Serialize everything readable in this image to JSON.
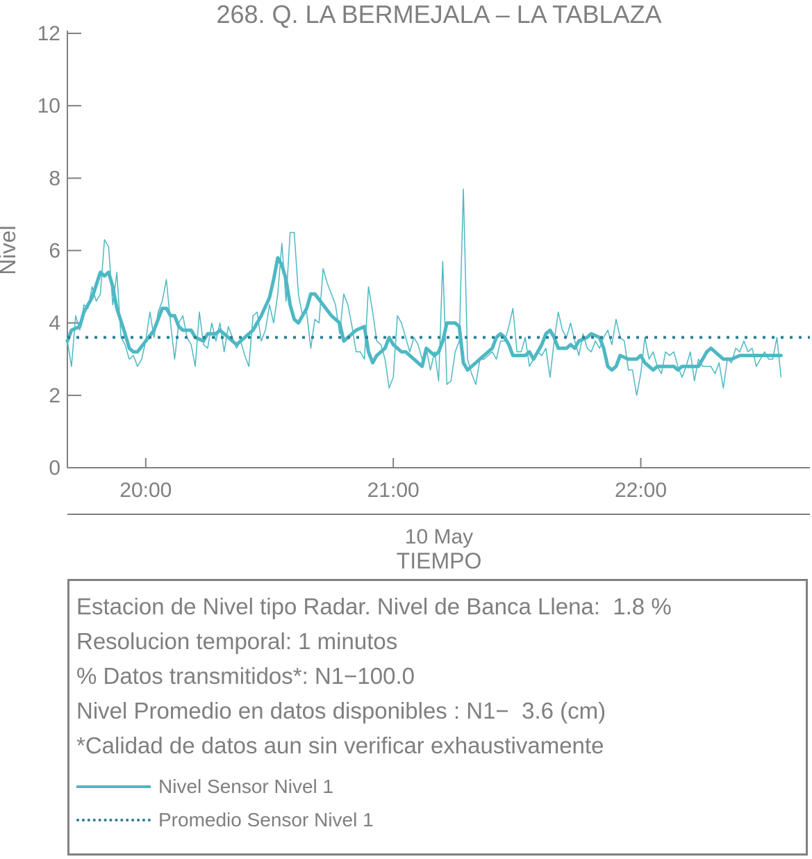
{
  "chart_data": {
    "type": "line",
    "title": "268. Q. LA BERMEJALA – LA TABLAZA",
    "ylabel": "Nivel",
    "xlabel": "TIEMPO",
    "date_label": "10 May",
    "ylim": [
      0,
      12
    ],
    "yticks": [
      0,
      2,
      4,
      6,
      8,
      10,
      12
    ],
    "xlim": [
      "19:41",
      "22:41"
    ],
    "xticks": [
      {
        "time": "20:00",
        "label": "20:00"
      },
      {
        "time": "21:00",
        "label": "21:00"
      },
      {
        "time": "22:00",
        "label": "22:00"
      }
    ],
    "colors": {
      "raw": "#4eb8c4",
      "smooth": "#4eb8c4",
      "mean": "#2a7e92"
    },
    "raw_points": [
      [
        "19:41",
        3.5
      ],
      [
        "19:42",
        2.8
      ],
      [
        "19:43",
        4.2
      ],
      [
        "19:44",
        3.8
      ],
      [
        "19:45",
        4.5
      ],
      [
        "19:46",
        4.4
      ],
      [
        "19:47",
        5.0
      ],
      [
        "19:48",
        4.6
      ],
      [
        "19:49",
        4.8
      ],
      [
        "19:50",
        6.3
      ],
      [
        "19:51",
        6.1
      ],
      [
        "19:52",
        4.5
      ],
      [
        "19:53",
        5.4
      ],
      [
        "19:54",
        3.6
      ],
      [
        "19:55",
        3.4
      ],
      [
        "19:56",
        3.0
      ],
      [
        "19:57",
        3.1
      ],
      [
        "19:58",
        2.8
      ],
      [
        "19:59",
        3.0
      ],
      [
        "20:00",
        3.5
      ],
      [
        "20:01",
        4.3
      ],
      [
        "20:02",
        3.6
      ],
      [
        "20:03",
        4.3
      ],
      [
        "20:04",
        4.6
      ],
      [
        "20:05",
        5.2
      ],
      [
        "20:06",
        4.0
      ],
      [
        "20:07",
        3.0
      ],
      [
        "20:08",
        4.0
      ],
      [
        "20:09",
        4.2
      ],
      [
        "20:10",
        3.6
      ],
      [
        "20:11",
        3.4
      ],
      [
        "20:12",
        2.8
      ],
      [
        "20:13",
        4.3
      ],
      [
        "20:14",
        3.4
      ],
      [
        "20:15",
        3.3
      ],
      [
        "20:16",
        4.0
      ],
      [
        "20:17",
        3.5
      ],
      [
        "20:18",
        4.0
      ],
      [
        "20:19",
        3.2
      ],
      [
        "20:20",
        3.9
      ],
      [
        "20:21",
        3.6
      ],
      [
        "20:22",
        3.3
      ],
      [
        "20:23",
        3.5
      ],
      [
        "20:24",
        3.1
      ],
      [
        "20:25",
        2.8
      ],
      [
        "20:26",
        4.2
      ],
      [
        "20:27",
        4.3
      ],
      [
        "20:28",
        3.5
      ],
      [
        "20:29",
        3.8
      ],
      [
        "20:30",
        4.5
      ],
      [
        "20:31",
        4.0
      ],
      [
        "20:32",
        4.8
      ],
      [
        "20:33",
        6.2
      ],
      [
        "20:34",
        4.6
      ],
      [
        "20:35",
        6.5
      ],
      [
        "20:36",
        6.5
      ],
      [
        "20:37",
        4.8
      ],
      [
        "20:38",
        4.2
      ],
      [
        "20:39",
        4.3
      ],
      [
        "20:40",
        3.3
      ],
      [
        "20:41",
        4.1
      ],
      [
        "20:42",
        4.0
      ],
      [
        "20:43",
        5.5
      ],
      [
        "20:44",
        5.1
      ],
      [
        "20:45",
        4.8
      ],
      [
        "20:46",
        4.5
      ],
      [
        "20:47",
        3.7
      ],
      [
        "20:48",
        4.8
      ],
      [
        "20:49",
        4.5
      ],
      [
        "20:50",
        3.9
      ],
      [
        "20:51",
        3.2
      ],
      [
        "20:52",
        3.2
      ],
      [
        "20:53",
        3.0
      ],
      [
        "20:54",
        5.0
      ],
      [
        "20:55",
        4.3
      ],
      [
        "20:56",
        3.5
      ],
      [
        "20:57",
        3.4
      ],
      [
        "20:58",
        3.0
      ],
      [
        "20:59",
        2.2
      ],
      [
        "21:00",
        2.5
      ],
      [
        "21:01",
        4.2
      ],
      [
        "21:02",
        4.0
      ],
      [
        "21:03",
        3.6
      ],
      [
        "21:04",
        3.2
      ],
      [
        "21:05",
        3.6
      ],
      [
        "21:06",
        3.4
      ],
      [
        "21:07",
        3.0
      ],
      [
        "21:08",
        3.3
      ],
      [
        "21:09",
        2.7
      ],
      [
        "21:10",
        3.2
      ],
      [
        "21:11",
        2.4
      ],
      [
        "21:12",
        5.7
      ],
      [
        "21:13",
        2.3
      ],
      [
        "21:14",
        2.4
      ],
      [
        "21:15",
        3.2
      ],
      [
        "21:16",
        3.5
      ],
      [
        "21:17",
        7.7
      ],
      [
        "21:18",
        3.0
      ],
      [
        "21:19",
        2.6
      ],
      [
        "21:20",
        2.3
      ],
      [
        "21:21",
        3.0
      ],
      [
        "21:22",
        3.0
      ],
      [
        "21:23",
        3.1
      ],
      [
        "21:24",
        3.2
      ],
      [
        "21:25",
        3.0
      ],
      [
        "21:26",
        3.5
      ],
      [
        "21:27",
        3.5
      ],
      [
        "21:28",
        3.9
      ],
      [
        "21:29",
        4.4
      ],
      [
        "21:30",
        3.2
      ],
      [
        "21:31",
        3.2
      ],
      [
        "21:32",
        3.6
      ],
      [
        "21:33",
        2.8
      ],
      [
        "21:34",
        3.0
      ],
      [
        "21:35",
        3.2
      ],
      [
        "21:36",
        3.1
      ],
      [
        "21:37",
        3.3
      ],
      [
        "21:38",
        2.5
      ],
      [
        "21:39",
        3.5
      ],
      [
        "21:40",
        4.3
      ],
      [
        "21:41",
        3.8
      ],
      [
        "21:42",
        3.6
      ],
      [
        "21:43",
        4.0
      ],
      [
        "21:44",
        3.5
      ],
      [
        "21:45",
        3.1
      ],
      [
        "21:46",
        3.7
      ],
      [
        "21:47",
        3.3
      ],
      [
        "21:48",
        3.2
      ],
      [
        "21:49",
        3.5
      ],
      [
        "21:50",
        3.3
      ],
      [
        "21:51",
        3.6
      ],
      [
        "21:52",
        3.8
      ],
      [
        "21:53",
        3.4
      ],
      [
        "21:54",
        4.1
      ],
      [
        "21:55",
        3.6
      ],
      [
        "21:56",
        3.5
      ],
      [
        "21:57",
        2.7
      ],
      [
        "21:58",
        2.7
      ],
      [
        "21:59",
        2.0
      ],
      [
        "22:00",
        2.6
      ],
      [
        "22:01",
        3.6
      ],
      [
        "22:02",
        3.0
      ],
      [
        "22:03",
        3.2
      ],
      [
        "22:04",
        2.8
      ],
      [
        "22:05",
        2.6
      ],
      [
        "22:06",
        3.2
      ],
      [
        "22:07",
        3.1
      ],
      [
        "22:08",
        3.2
      ],
      [
        "22:09",
        2.8
      ],
      [
        "22:10",
        2.5
      ],
      [
        "22:11",
        2.8
      ],
      [
        "22:12",
        3.2
      ],
      [
        "22:13",
        2.4
      ],
      [
        "22:14",
        3.0
      ],
      [
        "22:15",
        2.8
      ],
      [
        "22:16",
        2.8
      ],
      [
        "22:17",
        2.8
      ],
      [
        "22:18",
        2.6
      ],
      [
        "22:19",
        2.9
      ],
      [
        "22:20",
        2.2
      ],
      [
        "22:21",
        3.0
      ],
      [
        "22:22",
        2.9
      ],
      [
        "22:23",
        3.3
      ],
      [
        "22:24",
        3.2
      ],
      [
        "22:25",
        3.5
      ],
      [
        "22:26",
        3.2
      ],
      [
        "22:27",
        3.3
      ],
      [
        "22:28",
        2.8
      ],
      [
        "22:29",
        3.0
      ],
      [
        "22:30",
        3.2
      ],
      [
        "22:31",
        3.0
      ],
      [
        "22:32",
        3.0
      ],
      [
        "22:33",
        3.6
      ],
      [
        "22:34",
        2.5
      ]
    ],
    "smooth_points": [
      [
        "19:41",
        3.5
      ],
      [
        "19:42",
        3.8
      ],
      [
        "19:44",
        3.9
      ],
      [
        "19:45",
        4.3
      ],
      [
        "19:47",
        4.7
      ],
      [
        "19:49",
        5.4
      ],
      [
        "19:50",
        5.3
      ],
      [
        "19:51",
        5.4
      ],
      [
        "19:52",
        5.0
      ],
      [
        "19:53",
        4.4
      ],
      [
        "19:55",
        3.7
      ],
      [
        "19:56",
        3.3
      ],
      [
        "19:57",
        3.2
      ],
      [
        "19:58",
        3.2
      ],
      [
        "20:00",
        3.5
      ],
      [
        "20:02",
        3.8
      ],
      [
        "20:04",
        4.4
      ],
      [
        "20:05",
        4.4
      ],
      [
        "20:06",
        4.2
      ],
      [
        "20:07",
        4.2
      ],
      [
        "20:08",
        3.9
      ],
      [
        "20:09",
        3.8
      ],
      [
        "20:11",
        3.8
      ],
      [
        "20:12",
        3.6
      ],
      [
        "20:14",
        3.5
      ],
      [
        "20:15",
        3.7
      ],
      [
        "20:17",
        3.7
      ],
      [
        "20:18",
        3.8
      ],
      [
        "20:20",
        3.6
      ],
      [
        "20:22",
        3.4
      ],
      [
        "20:24",
        3.6
      ],
      [
        "20:26",
        3.8
      ],
      [
        "20:28",
        4.2
      ],
      [
        "20:30",
        4.7
      ],
      [
        "20:31",
        5.2
      ],
      [
        "20:32",
        5.8
      ],
      [
        "20:33",
        5.6
      ],
      [
        "20:34",
        5.2
      ],
      [
        "20:35",
        4.5
      ],
      [
        "20:36",
        4.1
      ],
      [
        "20:37",
        4.0
      ],
      [
        "20:39",
        4.4
      ],
      [
        "20:40",
        4.8
      ],
      [
        "20:41",
        4.8
      ],
      [
        "20:43",
        4.5
      ],
      [
        "20:45",
        4.2
      ],
      [
        "20:47",
        4.0
      ],
      [
        "20:48",
        3.5
      ],
      [
        "20:49",
        3.6
      ],
      [
        "20:51",
        3.8
      ],
      [
        "20:53",
        3.9
      ],
      [
        "20:54",
        3.2
      ],
      [
        "20:55",
        2.9
      ],
      [
        "20:56",
        3.1
      ],
      [
        "20:58",
        3.3
      ],
      [
        "20:59",
        3.6
      ],
      [
        "21:00",
        3.4
      ],
      [
        "21:02",
        3.2
      ],
      [
        "21:03",
        3.2
      ],
      [
        "21:04",
        3.1
      ],
      [
        "21:05",
        3.0
      ],
      [
        "21:06",
        2.9
      ],
      [
        "21:07",
        2.8
      ],
      [
        "21:08",
        3.3
      ],
      [
        "21:10",
        3.1
      ],
      [
        "21:11",
        3.2
      ],
      [
        "21:12",
        3.5
      ],
      [
        "21:13",
        4.0
      ],
      [
        "21:14",
        4.0
      ],
      [
        "21:15",
        4.0
      ],
      [
        "21:16",
        3.9
      ],
      [
        "21:17",
        2.9
      ],
      [
        "21:18",
        2.7
      ],
      [
        "21:19",
        2.8
      ],
      [
        "21:20",
        2.9
      ],
      [
        "21:22",
        3.1
      ],
      [
        "21:24",
        3.3
      ],
      [
        "21:25",
        3.6
      ],
      [
        "21:26",
        3.7
      ],
      [
        "21:27",
        3.6
      ],
      [
        "21:28",
        3.4
      ],
      [
        "21:29",
        3.1
      ],
      [
        "21:30",
        3.1
      ],
      [
        "21:32",
        3.1
      ],
      [
        "21:33",
        3.2
      ],
      [
        "21:34",
        3.0
      ],
      [
        "21:36",
        3.4
      ],
      [
        "21:37",
        3.7
      ],
      [
        "21:38",
        3.8
      ],
      [
        "21:39",
        3.6
      ],
      [
        "21:40",
        3.3
      ],
      [
        "21:42",
        3.3
      ],
      [
        "21:43",
        3.4
      ],
      [
        "21:44",
        3.3
      ],
      [
        "21:45",
        3.5
      ],
      [
        "21:47",
        3.6
      ],
      [
        "21:48",
        3.7
      ],
      [
        "21:50",
        3.6
      ],
      [
        "21:51",
        3.3
      ],
      [
        "21:52",
        2.8
      ],
      [
        "21:53",
        2.7
      ],
      [
        "21:54",
        2.8
      ],
      [
        "21:55",
        3.1
      ],
      [
        "21:57",
        3.0
      ],
      [
        "21:59",
        3.0
      ],
      [
        "22:00",
        3.1
      ],
      [
        "22:01",
        2.9
      ],
      [
        "22:02",
        2.8
      ],
      [
        "22:03",
        2.7
      ],
      [
        "22:04",
        2.8
      ],
      [
        "22:06",
        2.8
      ],
      [
        "22:08",
        2.8
      ],
      [
        "22:09",
        2.7
      ],
      [
        "22:10",
        2.8
      ],
      [
        "22:12",
        2.8
      ],
      [
        "22:13",
        2.8
      ],
      [
        "22:14",
        2.8
      ],
      [
        "22:16",
        3.2
      ],
      [
        "22:17",
        3.3
      ],
      [
        "22:18",
        3.2
      ],
      [
        "22:19",
        3.1
      ],
      [
        "22:20",
        3.0
      ],
      [
        "22:22",
        3.0
      ],
      [
        "22:24",
        3.1
      ],
      [
        "22:26",
        3.1
      ],
      [
        "22:28",
        3.1
      ],
      [
        "22:30",
        3.1
      ],
      [
        "22:32",
        3.1
      ],
      [
        "22:34",
        3.1
      ]
    ],
    "mean_value": 3.6,
    "grid": false
  },
  "info": {
    "line1": "Estacion de Nivel tipo Radar. Nivel de Banca Llena:  1.8 %",
    "line2": "Resolucion temporal: 1 minutos",
    "line3": "% Datos transmitidos*: N1−100.0",
    "line4": "Nivel Promedio en datos disponibles : N1−  3.6 (cm)",
    "line5": "*Calidad de datos aun sin verificar exhaustivamente"
  },
  "legend": [
    {
      "label": "Nivel Sensor Nivel 1",
      "style": "solid",
      "color": "#4eb8c4"
    },
    {
      "label": "Promedio Sensor Nivel 1",
      "style": "dotted",
      "color": "#2a7e92"
    }
  ]
}
